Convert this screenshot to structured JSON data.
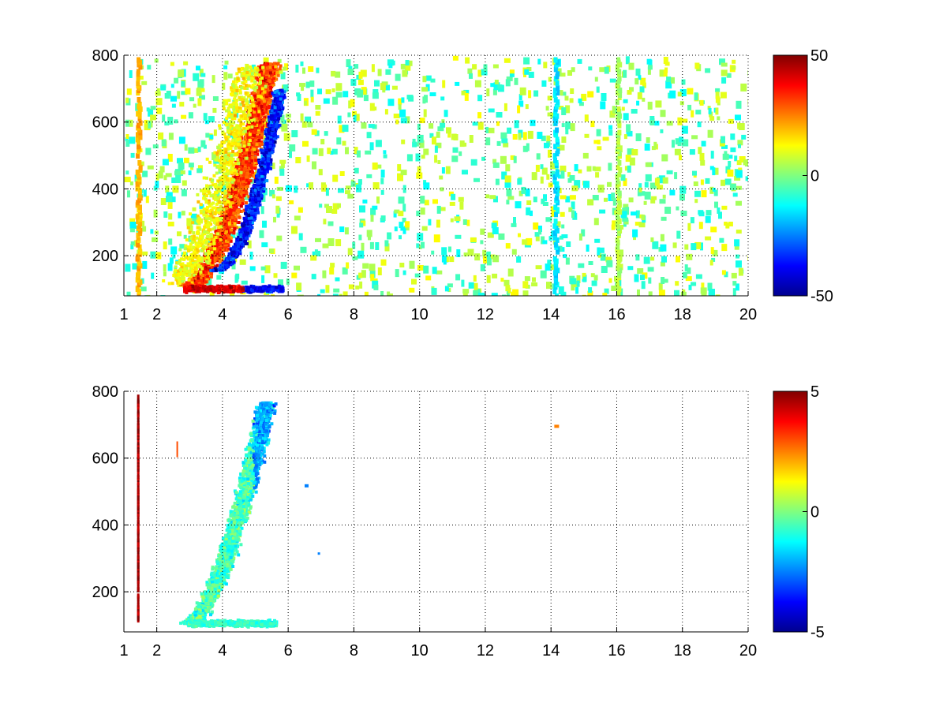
{
  "chart_data": [
    {
      "type": "heatmap",
      "title": "",
      "xlabel": "",
      "ylabel": "",
      "xlim": [
        1,
        20
      ],
      "ylim": [
        80,
        800
      ],
      "xticks": [
        1,
        2,
        4,
        6,
        8,
        10,
        12,
        14,
        16,
        18,
        20
      ],
      "yticks": [
        200,
        400,
        600,
        800
      ],
      "grid": true,
      "colormap": "jet",
      "clim": [
        -50,
        50
      ],
      "colorbar_ticks": [
        -50,
        0,
        50
      ],
      "features": [
        {
          "name": "upper sloping positive band",
          "x_from": 2.7,
          "x_to": 5.8,
          "y_from": 110,
          "y_to": 780,
          "value": 35
        },
        {
          "name": "lower sloping negative band",
          "x_from": 3.3,
          "x_to": 5.8,
          "y_from": 160,
          "y_to": 700,
          "value": -40
        },
        {
          "name": "low horizontal band",
          "x_from": 2.8,
          "x_to": 5.8,
          "y": 110,
          "value": 40
        },
        {
          "name": "vertical stripe",
          "x": 1.4,
          "value": 20
        },
        {
          "name": "vertical stripe",
          "x": 14.1,
          "value": -15
        },
        {
          "name": "vertical stripe",
          "x": 16.0,
          "value": 5
        }
      ]
    },
    {
      "type": "heatmap",
      "title": "",
      "xlabel": "",
      "ylabel": "",
      "xlim": [
        1,
        20
      ],
      "ylim": [
        80,
        800
      ],
      "xticks": [
        1,
        2,
        4,
        6,
        8,
        10,
        12,
        14,
        16,
        18,
        20
      ],
      "yticks": [
        200,
        400,
        600,
        800
      ],
      "grid": true,
      "colormap": "jet",
      "clim": [
        -5,
        5
      ],
      "colorbar_ticks": [
        -5,
        0,
        5
      ],
      "features": [
        {
          "name": "sloping band",
          "x_from": 2.5,
          "x_to": 5.8,
          "y_from": 110,
          "y_to": 780,
          "value": -0.5
        },
        {
          "name": "low horizontal band",
          "x_from": 2.9,
          "x_to": 5.6,
          "y": 110,
          "value": -0.8
        },
        {
          "name": "vertical stripe",
          "x": 1.4,
          "value": 4.5
        },
        {
          "name": "isolated point",
          "x": 14.1,
          "y": 700,
          "value": 2.5
        },
        {
          "name": "isolated point",
          "x": 6.5,
          "y": 520,
          "value": -2.5
        }
      ]
    }
  ]
}
